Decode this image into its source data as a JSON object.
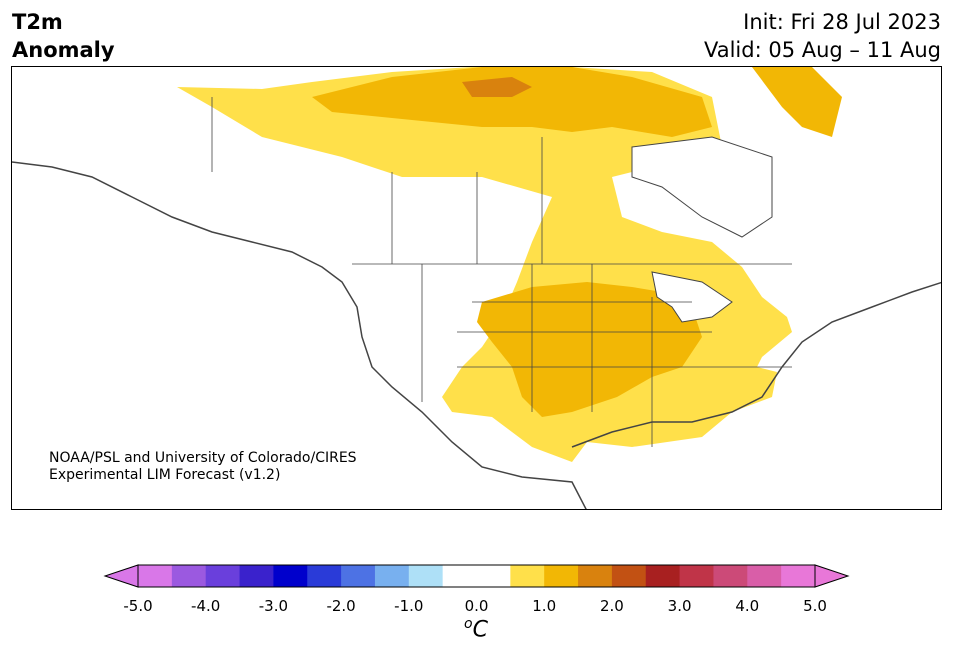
{
  "header": {
    "variable_line1": "T2m",
    "variable_line2": "Anomaly",
    "init": "Init: Fri 28 Jul 2023",
    "valid": "Valid: 05 Aug – 11 Aug"
  },
  "credit": {
    "line1": "NOAA/PSL and University of Colorado/CIRES",
    "line2": "Experimental LIM Forecast (v1.2)"
  },
  "colorbar": {
    "unit_base": "C",
    "unit_sup": "o",
    "ticks": [
      "-5.0",
      "-4.0",
      "-3.0",
      "-2.0",
      "-1.0",
      "0.0",
      "1.0",
      "2.0",
      "3.0",
      "4.0",
      "5.0"
    ],
    "colors": [
      "#d977e8",
      "#9b59e0",
      "#6a3fdc",
      "#3a22cc",
      "#0000cc",
      "#2a3bd8",
      "#4d72e4",
      "#78b0ef",
      "#aee0f7",
      "#ffffff",
      "#ffffff",
      "#ffe04a",
      "#f2b705",
      "#d9820e",
      "#c25113",
      "#a82020",
      "#c03448",
      "#cc4a78",
      "#d95ea8",
      "#e877d8"
    ],
    "under_color": "#d977e8",
    "over_color": "#e877d8"
  },
  "map": {
    "anomaly_colors": {
      "light": "#ffe04a",
      "medium": "#f2b705",
      "strong": "#d9820e"
    }
  }
}
